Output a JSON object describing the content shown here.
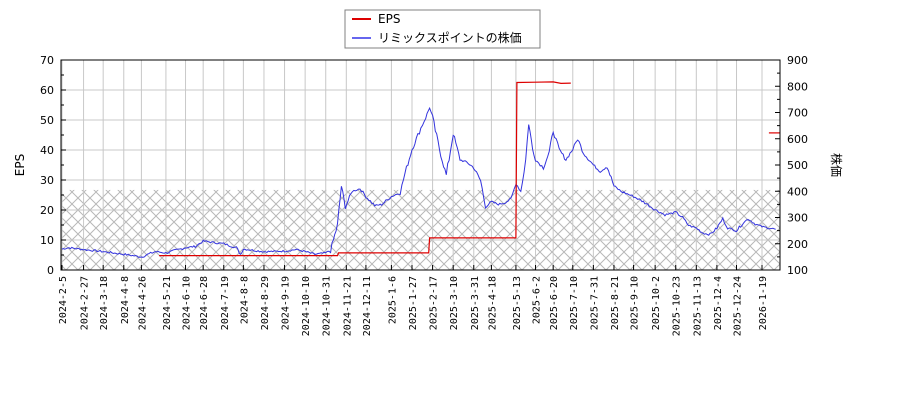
{
  "legend": {
    "items": [
      {
        "label": "EPS",
        "color": "#dd0000"
      },
      {
        "label": "リミックスポイントの株価",
        "color": "#3333dd"
      }
    ]
  },
  "axes": {
    "left_title": "EPS",
    "right_title": "株価",
    "left_ticks": [
      "0",
      "10",
      "20",
      "30",
      "40",
      "50",
      "60",
      "70"
    ],
    "right_ticks": [
      "100",
      "200",
      "300",
      "400",
      "500",
      "600",
      "700",
      "800",
      "900"
    ],
    "x_ticks": [
      "2024-2-5",
      "2024-2-27",
      "2024-3-18",
      "2024-4-8",
      "2024-4-26",
      "2024-5-21",
      "2024-6-10",
      "2024-6-28",
      "2024-7-19",
      "2024-8-8",
      "2024-8-29",
      "2024-9-19",
      "2024-10-10",
      "2024-10-31",
      "2024-11-21",
      "2024-12-11",
      "2025-1-6",
      "2025-1-27",
      "2025-2-17",
      "2025-3-10",
      "2025-3-31",
      "2025-4-18",
      "2025-5-13",
      "2025-6-2",
      "2025-6-20",
      "2025-7-10",
      "2025-7-31",
      "2025-8-21",
      "2025-9-10",
      "2025-10-2",
      "2025-10-23",
      "2025-11-13",
      "2025-12-4",
      "2025-12-24",
      "2026-1-19"
    ]
  },
  "chart_data": {
    "type": "line",
    "title": "",
    "legend_position": "top-center",
    "grid": true,
    "x_ticks": [
      "2024-2-5",
      "2024-2-27",
      "2024-3-18",
      "2024-4-8",
      "2024-4-26",
      "2024-5-21",
      "2024-6-10",
      "2024-6-28",
      "2024-7-19",
      "2024-8-8",
      "2024-8-29",
      "2024-9-19",
      "2024-10-10",
      "2024-10-31",
      "2024-11-21",
      "2024-12-11",
      "2025-1-6",
      "2025-1-27",
      "2025-2-17",
      "2025-3-10",
      "2025-3-31",
      "2025-4-18",
      "2025-5-13",
      "2025-6-2",
      "2025-6-20",
      "2025-7-10",
      "2025-7-31",
      "2025-8-21",
      "2025-9-10",
      "2025-10-2",
      "2025-10-23",
      "2025-11-13",
      "2025-12-4",
      "2025-12-24",
      "2026-1-19"
    ],
    "left_axis": {
      "label": "EPS",
      "ylim": [
        0,
        70
      ]
    },
    "right_axis": {
      "label": "株価",
      "ylim": [
        100,
        900
      ]
    },
    "hatched_region": {
      "axis": "right",
      "from": 100,
      "to": 405
    },
    "series": [
      {
        "name": "EPS",
        "axis": "left",
        "color": "#dd0000",
        "step": true,
        "points": [
          [
            "2024-5-14",
            4.8
          ],
          [
            "2024-11-12",
            4.8
          ],
          [
            "2024-11-13",
            5.7
          ],
          [
            "2025-2-13",
            5.7
          ],
          [
            "2025-2-14",
            10.7
          ],
          [
            "2025-5-13",
            10.7
          ],
          [
            "2025-5-14",
            62.5
          ],
          [
            "2025-6-2",
            62.6
          ],
          [
            "2025-6-20",
            62.7
          ],
          [
            "2025-6-28",
            62.2
          ],
          [
            "2025-7-8",
            62.3
          ],
          [
            "2026-1-26",
            45.7
          ],
          [
            "2026-2-2",
            45.7
          ]
        ]
      },
      {
        "name": "リミックスポイントの株価",
        "axis": "right",
        "color": "#3333dd",
        "points": [
          [
            "2024-2-5",
            180
          ],
          [
            "2024-2-12",
            185
          ],
          [
            "2024-2-27",
            178
          ],
          [
            "2024-3-18",
            170
          ],
          [
            "2024-4-8",
            160
          ],
          [
            "2024-4-26",
            150
          ],
          [
            "2024-5-10",
            170
          ],
          [
            "2024-5-21",
            165
          ],
          [
            "2024-6-10",
            185
          ],
          [
            "2024-6-20",
            190
          ],
          [
            "2024-6-28",
            210
          ],
          [
            "2024-7-19",
            200
          ],
          [
            "2024-8-1",
            185
          ],
          [
            "2024-8-5",
            160
          ],
          [
            "2024-8-8",
            180
          ],
          [
            "2024-8-29",
            170
          ],
          [
            "2024-9-19",
            172
          ],
          [
            "2024-10-1",
            178
          ],
          [
            "2024-10-10",
            170
          ],
          [
            "2024-10-20",
            160
          ],
          [
            "2024-10-31",
            165
          ],
          [
            "2024-11-5",
            175
          ],
          [
            "2024-11-12",
            270
          ],
          [
            "2024-11-16",
            420
          ],
          [
            "2024-11-20",
            340
          ],
          [
            "2024-11-27",
            400
          ],
          [
            "2024-12-5",
            410
          ],
          [
            "2024-12-11",
            380
          ],
          [
            "2024-12-20",
            345
          ],
          [
            "2024-12-27",
            350
          ],
          [
            "2025-1-6",
            380
          ],
          [
            "2025-1-15",
            395
          ],
          [
            "2025-1-20",
            470
          ],
          [
            "2025-1-27",
            560
          ],
          [
            "2025-2-5",
            640
          ],
          [
            "2025-2-10",
            680
          ],
          [
            "2025-2-14",
            720
          ],
          [
            "2025-2-17",
            680
          ],
          [
            "2025-2-24",
            560
          ],
          [
            "2025-3-3",
            460
          ],
          [
            "2025-3-10",
            620
          ],
          [
            "2025-3-17",
            520
          ],
          [
            "2025-3-24",
            510
          ],
          [
            "2025-3-31",
            490
          ],
          [
            "2025-4-7",
            440
          ],
          [
            "2025-4-12",
            340
          ],
          [
            "2025-4-18",
            360
          ],
          [
            "2025-4-25",
            350
          ],
          [
            "2025-5-1",
            355
          ],
          [
            "2025-5-8",
            370
          ],
          [
            "2025-5-13",
            430
          ],
          [
            "2025-5-18",
            400
          ],
          [
            "2025-5-23",
            520
          ],
          [
            "2025-5-26",
            660
          ],
          [
            "2025-5-30",
            560
          ],
          [
            "2025-6-2",
            520
          ],
          [
            "2025-6-10",
            490
          ],
          [
            "2025-6-16",
            550
          ],
          [
            "2025-6-20",
            630
          ],
          [
            "2025-6-26",
            560
          ],
          [
            "2025-7-3",
            520
          ],
          [
            "2025-7-10",
            560
          ],
          [
            "2025-7-15",
            600
          ],
          [
            "2025-7-21",
            545
          ],
          [
            "2025-7-31",
            500
          ],
          [
            "2025-8-7",
            475
          ],
          [
            "2025-8-14",
            495
          ],
          [
            "2025-8-21",
            420
          ],
          [
            "2025-8-28",
            400
          ],
          [
            "2025-9-10",
            380
          ],
          [
            "2025-9-20",
            360
          ],
          [
            "2025-10-2",
            330
          ],
          [
            "2025-10-12",
            310
          ],
          [
            "2025-10-23",
            320
          ],
          [
            "2025-10-30",
            300
          ],
          [
            "2025-11-5",
            270
          ],
          [
            "2025-11-13",
            260
          ],
          [
            "2025-11-20",
            240
          ],
          [
            "2025-11-27",
            235
          ],
          [
            "2025-12-4",
            260
          ],
          [
            "2025-12-10",
            295
          ],
          [
            "2025-12-15",
            260
          ],
          [
            "2025-12-24",
            250
          ],
          [
            "2025-12-31",
            280
          ],
          [
            "2026-1-5",
            295
          ],
          [
            "2026-1-12",
            275
          ],
          [
            "2026-1-19",
            265
          ],
          [
            "2026-1-26",
            260
          ],
          [
            "2026-2-2",
            255
          ]
        ]
      }
    ]
  }
}
